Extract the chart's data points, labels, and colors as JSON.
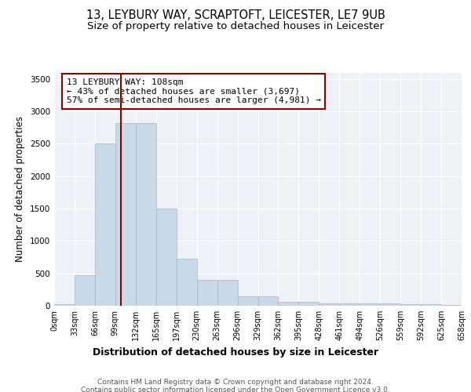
{
  "title": "13, LEYBURY WAY, SCRAPTOFT, LEICESTER, LE7 9UB",
  "subtitle": "Size of property relative to detached houses in Leicester",
  "xlabel": "Distribution of detached houses by size in Leicester",
  "ylabel": "Number of detached properties",
  "bar_values": [
    30,
    470,
    2500,
    2820,
    2820,
    1500,
    730,
    400,
    400,
    150,
    150,
    65,
    65,
    40,
    40,
    35,
    35,
    20,
    20,
    10
  ],
  "bar_labels": [
    "0sqm",
    "33sqm",
    "66sqm",
    "99sqm",
    "132sqm",
    "165sqm",
    "197sqm",
    "230sqm",
    "263sqm",
    "296sqm",
    "329sqm",
    "362sqm",
    "395sqm",
    "428sqm",
    "461sqm",
    "494sqm",
    "526sqm",
    "559sqm",
    "592sqm",
    "625sqm",
    "658sqm"
  ],
  "bar_color": "#c9d9e8",
  "bar_edgecolor": "#a0b8cc",
  "vline_x": 3.27,
  "vline_color": "#8b0000",
  "annotation_line1": "13 LEYBURY WAY: 108sqm",
  "annotation_line2": "← 43% of detached houses are smaller (3,697)",
  "annotation_line3": "57% of semi-detached houses are larger (4,981) →",
  "ylim": [
    0,
    3600
  ],
  "yticks": [
    0,
    500,
    1000,
    1500,
    2000,
    2500,
    3000,
    3500
  ],
  "background_color": "#eef2f7",
  "grid_color": "#ffffff",
  "footer_text": "Contains HM Land Registry data © Crown copyright and database right 2024.\nContains public sector information licensed under the Open Government Licence v3.0.",
  "title_fontsize": 10.5,
  "subtitle_fontsize": 9.5,
  "xlabel_fontsize": 9,
  "ylabel_fontsize": 8.5,
  "annotation_fontsize": 8,
  "footer_fontsize": 6.5,
  "tick_fontsize": 7
}
